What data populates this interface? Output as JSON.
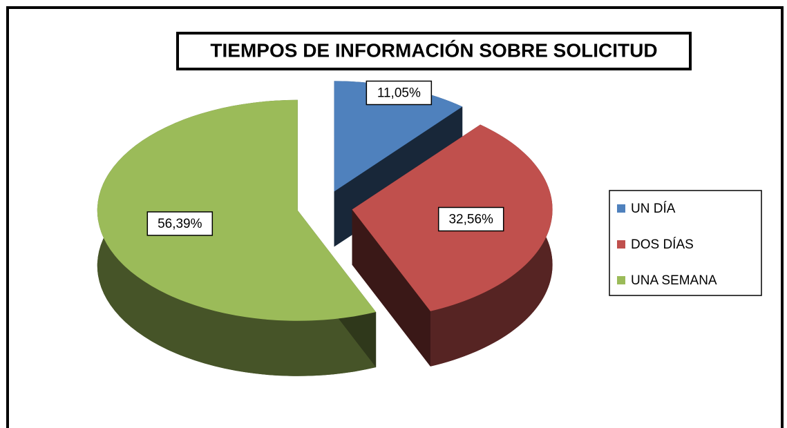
{
  "chart_data": {
    "type": "pie",
    "title": "TIEMPOS DE INFORMACIÓN SOBRE SOLICITUD",
    "categories": [
      "UN DÍA",
      "DOS DÍAS",
      "UNA SEMANA"
    ],
    "values": [
      11.05,
      32.56,
      56.39
    ],
    "value_labels": [
      "11,05%",
      "32,56%",
      "56,39%"
    ],
    "colors": [
      "#4f81bd",
      "#c0504d",
      "#9bbb59"
    ],
    "legend": "right"
  }
}
